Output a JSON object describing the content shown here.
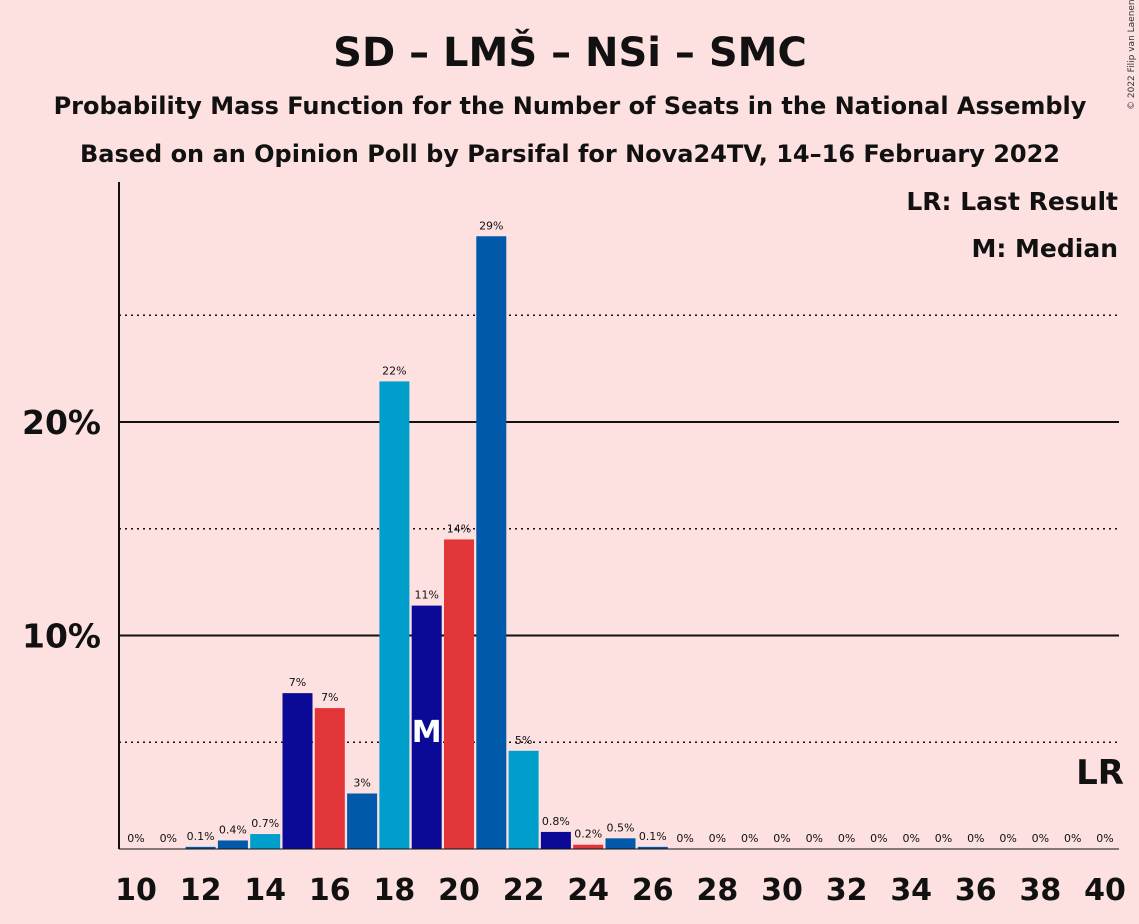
{
  "chart_data": {
    "type": "bar",
    "title": "SD – LMŠ – NSi – SMC",
    "subtitle1": "Probability Mass Function for the Number of Seats in the National Assembly",
    "subtitle2": "Based on an Opinion Poll by Parsifal for Nova24TV, 14–16 February 2022",
    "legend_lr": "LR: Last Result",
    "legend_m": "M: Median",
    "copyright": "© 2022 Filip van Laenen",
    "lr_label": "LR",
    "lr_seat": 40,
    "median_label": "M",
    "median_seat": 19,
    "xlabel": "",
    "ylabel": "",
    "ylim": [
      0,
      31
    ],
    "x_ticks": [
      "10",
      "12",
      "14",
      "16",
      "18",
      "20",
      "22",
      "24",
      "26",
      "28",
      "30",
      "32",
      "34",
      "36",
      "38",
      "40"
    ],
    "y_ticks": [
      {
        "value": 10,
        "label": "10%"
      },
      {
        "value": 20,
        "label": "20%"
      }
    ],
    "dotted_lines": [
      5,
      15,
      25
    ],
    "x": [
      10,
      11,
      12,
      13,
      14,
      15,
      16,
      17,
      18,
      19,
      20,
      21,
      22,
      23,
      24,
      25,
      26,
      27,
      28,
      29,
      30,
      31,
      32,
      33,
      34,
      35,
      36,
      37,
      38,
      39,
      40
    ],
    "values": [
      0,
      0,
      0.1,
      0.4,
      0.7,
      7.3,
      6.6,
      2.6,
      21.9,
      11.4,
      14.5,
      28.7,
      4.6,
      0.8,
      0.2,
      0.5,
      0.1,
      0,
      0,
      0,
      0,
      0,
      0,
      0,
      0,
      0,
      0,
      0,
      0,
      0,
      0
    ],
    "labels": [
      "0%",
      "0%",
      "0.1%",
      "0.4%",
      "0.7%",
      "7%",
      "7%",
      "3%",
      "22%",
      "11%",
      "14%",
      "29%",
      "5%",
      "0.8%",
      "0.2%",
      "0.5%",
      "0.1%",
      "0%",
      "0%",
      "0%",
      "0%",
      "0%",
      "0%",
      "0%",
      "0%",
      "0%",
      "0%",
      "0%",
      "0%",
      "0%",
      "0%"
    ],
    "colors": {
      "red": "#e23538",
      "navy": "#0a0a96",
      "blue": "#005aa9",
      "cyan": "#009ecb"
    },
    "bar_color_keys": [
      "blue",
      "blue",
      "blue",
      "blue",
      "cyan",
      "navy",
      "red",
      "blue",
      "cyan",
      "navy",
      "red",
      "blue",
      "cyan",
      "navy",
      "red",
      "blue",
      "blue",
      "blue",
      "blue",
      "blue",
      "blue",
      "blue",
      "blue",
      "blue",
      "blue",
      "blue",
      "blue",
      "blue",
      "blue",
      "blue",
      "blue"
    ]
  }
}
